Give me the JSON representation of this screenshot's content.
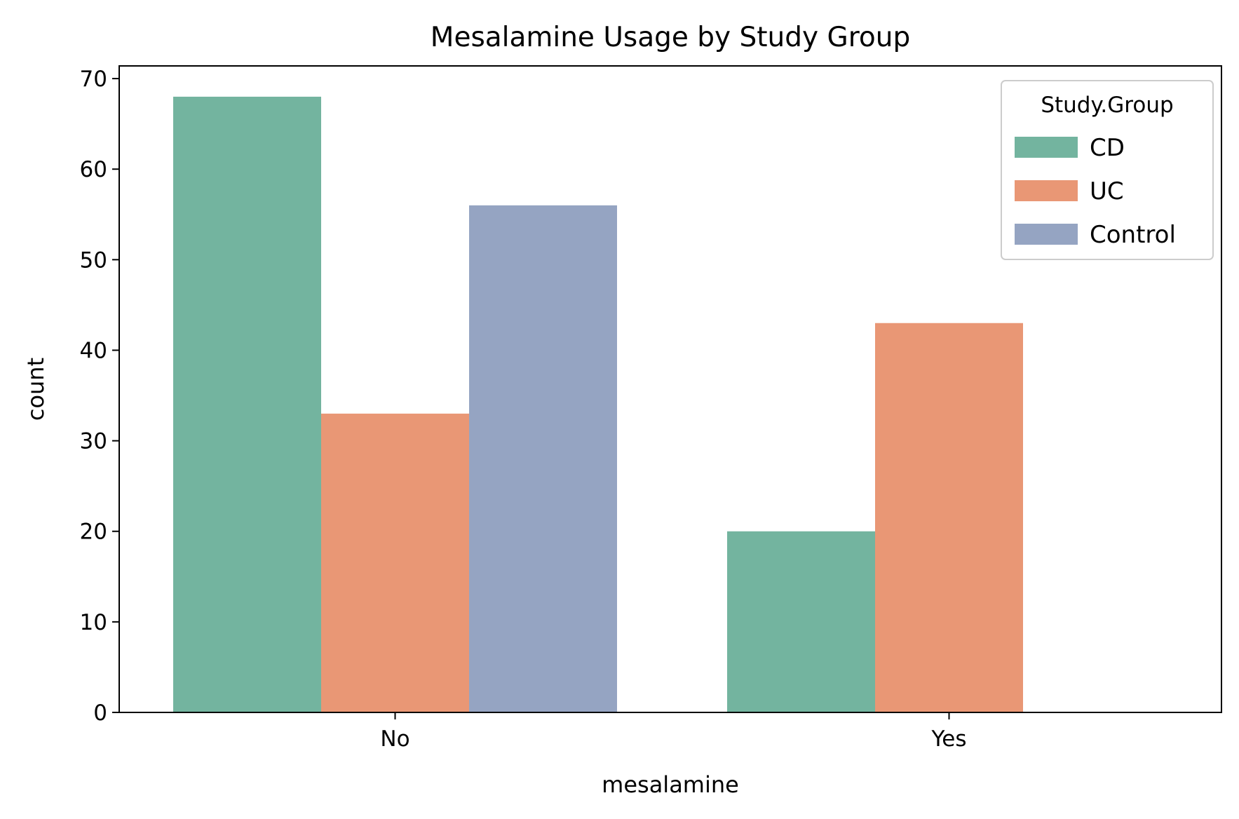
{
  "chart_data": {
    "type": "bar",
    "title": "Mesalamine Usage by Study Group",
    "xlabel": "mesalamine",
    "ylabel": "count",
    "categories": [
      "No",
      "Yes"
    ],
    "ylim": [
      0,
      71.4
    ],
    "yticks": [
      0,
      10,
      20,
      30,
      40,
      50,
      60,
      70
    ],
    "grid": false,
    "legend": {
      "title": "Study.Group",
      "position": "top-right"
    },
    "series": [
      {
        "name": "CD",
        "values": [
          68,
          20
        ],
        "color": "#73b49f"
      },
      {
        "name": "UC",
        "values": [
          33,
          43
        ],
        "color": "#e99775"
      },
      {
        "name": "Control",
        "values": [
          56,
          0
        ],
        "color": "#95a4c2"
      }
    ]
  }
}
